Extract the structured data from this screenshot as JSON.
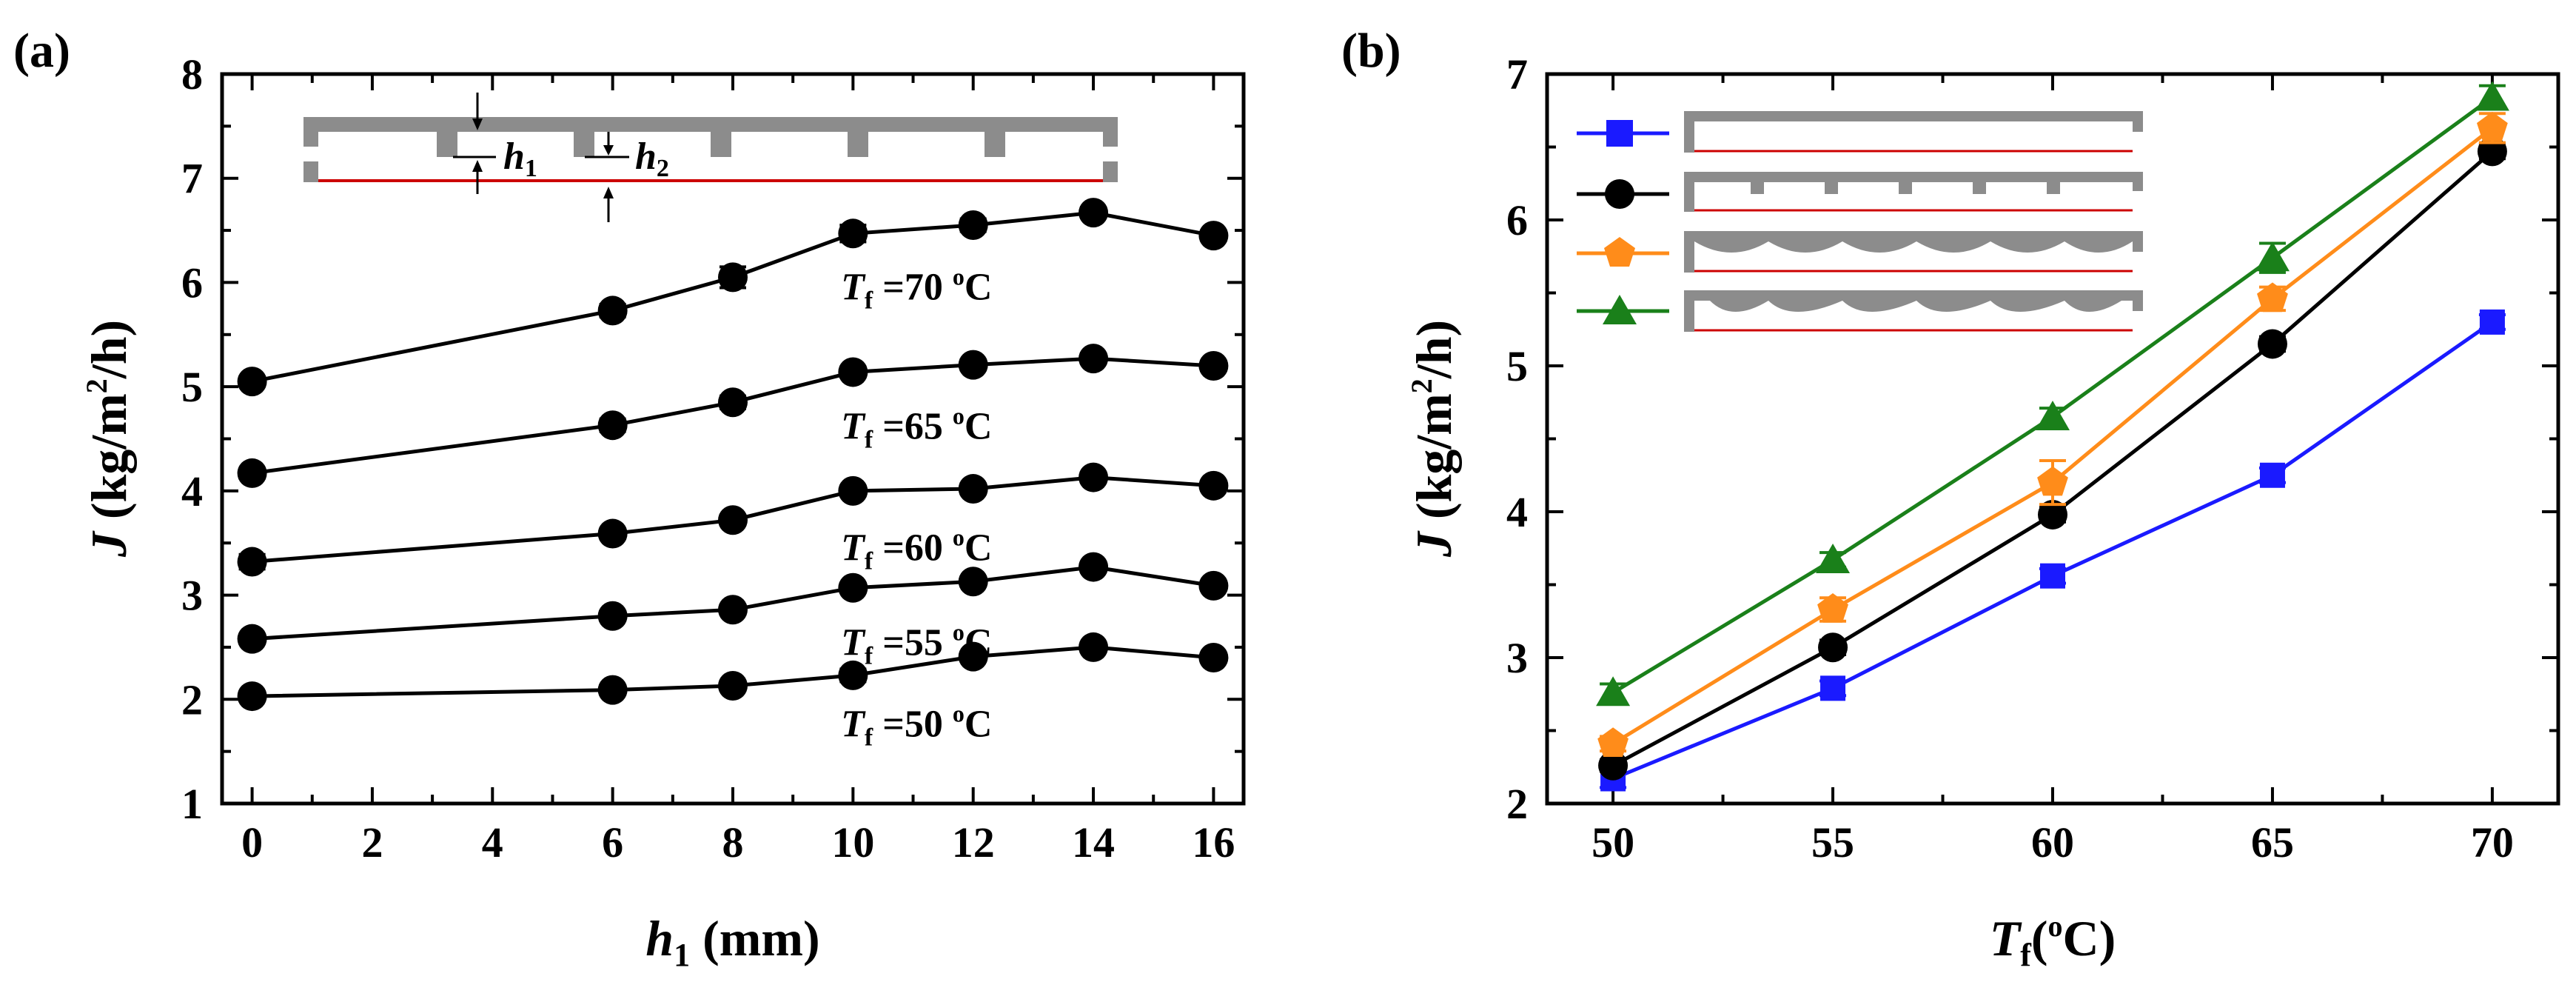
{
  "chart_data": [
    {
      "panel_label": "(a)",
      "type": "line",
      "x": [
        0,
        6,
        8,
        10,
        12,
        14,
        16
      ],
      "xlim": [
        -0.5,
        16.5
      ],
      "ylim": [
        1,
        8
      ],
      "xticks": [
        0,
        2,
        4,
        6,
        8,
        10,
        12,
        14,
        16
      ],
      "yticks": [
        1,
        2,
        3,
        4,
        5,
        6,
        7,
        8
      ],
      "xlabel": {
        "main": "h",
        "sub": "1",
        "unit": " (mm)"
      },
      "ylabel": {
        "main": "J",
        "unit": " (kg/m",
        "sup": "2",
        "unit2": "/h)"
      },
      "grid": false,
      "series": [
        {
          "name": "Tf=70 oC",
          "values": [
            5.05,
            5.73,
            6.05,
            6.47,
            6.55,
            6.67,
            6.45
          ],
          "errors": [
            0.05,
            0.06,
            0.1,
            0.08,
            0.06,
            0.05,
            0.05
          ],
          "label": {
            "main": "T",
            "sub": "f",
            "eq": " =70 ",
            "sup": "o",
            "unit": "C"
          }
        },
        {
          "name": "Tf=65 oC",
          "values": [
            4.17,
            4.63,
            4.85,
            5.14,
            5.21,
            5.27,
            5.2
          ],
          "errors": [
            0.05,
            0.06,
            0.06,
            0.05,
            0.05,
            0.05,
            0.05
          ],
          "label": {
            "main": "T",
            "sub": "f",
            "eq": " =65 ",
            "sup": "o",
            "unit": "C"
          }
        },
        {
          "name": "Tf=60 oC",
          "values": [
            3.32,
            3.59,
            3.72,
            4.0,
            4.02,
            4.13,
            4.05
          ],
          "errors": [
            0.07,
            0.05,
            0.05,
            0.05,
            0.05,
            0.05,
            0.05
          ],
          "label": {
            "main": "T",
            "sub": "f",
            "eq": " =60 ",
            "sup": "o",
            "unit": "C"
          }
        },
        {
          "name": "Tf=55 oC",
          "values": [
            2.58,
            2.8,
            2.86,
            3.07,
            3.13,
            3.27,
            3.09
          ],
          "errors": [
            0.04,
            0.04,
            0.04,
            0.04,
            0.04,
            0.05,
            0.04
          ],
          "label": {
            "main": "T",
            "sub": "f",
            "eq": " =55 ",
            "sup": "o",
            "unit": "C"
          }
        },
        {
          "name": "Tf=50 oC",
          "values": [
            2.03,
            2.09,
            2.13,
            2.23,
            2.41,
            2.5,
            2.4
          ],
          "errors": [
            0.03,
            0.03,
            0.04,
            0.06,
            0.04,
            0.04,
            0.04
          ],
          "label": {
            "main": "T",
            "sub": "f",
            "eq": " =50 ",
            "sup": "o",
            "unit": "C"
          }
        }
      ],
      "inset": {
        "label_1": "h",
        "label_1_sub": "1",
        "label_2": "h",
        "label_2_sub": "2"
      }
    },
    {
      "panel_label": "(b)",
      "type": "line",
      "x": [
        50,
        55,
        60,
        65,
        70
      ],
      "xlim": [
        48.5,
        71.5
      ],
      "ylim": [
        2,
        7
      ],
      "xticks": [
        50,
        55,
        60,
        65,
        70
      ],
      "yticks": [
        2,
        3,
        4,
        5,
        6,
        7
      ],
      "xlabel": {
        "main": "T",
        "sub": "f",
        "unit": "(",
        "sup": "o",
        "unit2": "C)"
      },
      "ylabel": {
        "main": "J",
        "unit": " (kg/m",
        "sup": "2",
        "unit2": "/h)"
      },
      "grid": false,
      "series": [
        {
          "name": "flat channel",
          "color": "#1a1aff",
          "marker": "square",
          "values": [
            2.17,
            2.79,
            3.56,
            4.25,
            5.3
          ],
          "errors": [
            0.06,
            0.05,
            0.05,
            0.05,
            0.05
          ]
        },
        {
          "name": "rectangular spacers",
          "color": "#000000",
          "marker": "circle",
          "values": [
            2.26,
            3.07,
            3.98,
            5.15,
            6.47
          ],
          "errors": [
            0.04,
            0.05,
            0.05,
            0.05,
            0.05
          ]
        },
        {
          "name": "arc spacers",
          "color": "#ff8c1a",
          "marker": "pentagon",
          "values": [
            2.41,
            3.33,
            4.2,
            5.46,
            6.63
          ],
          "errors": [
            0.05,
            0.08,
            0.15,
            0.08,
            0.1
          ]
        },
        {
          "name": "inclined arc spacers",
          "color": "#1a801a",
          "marker": "triangle",
          "values": [
            2.76,
            3.67,
            4.65,
            5.74,
            6.84
          ],
          "errors": [
            0.06,
            0.05,
            0.06,
            0.1,
            0.08
          ]
        }
      ]
    }
  ]
}
